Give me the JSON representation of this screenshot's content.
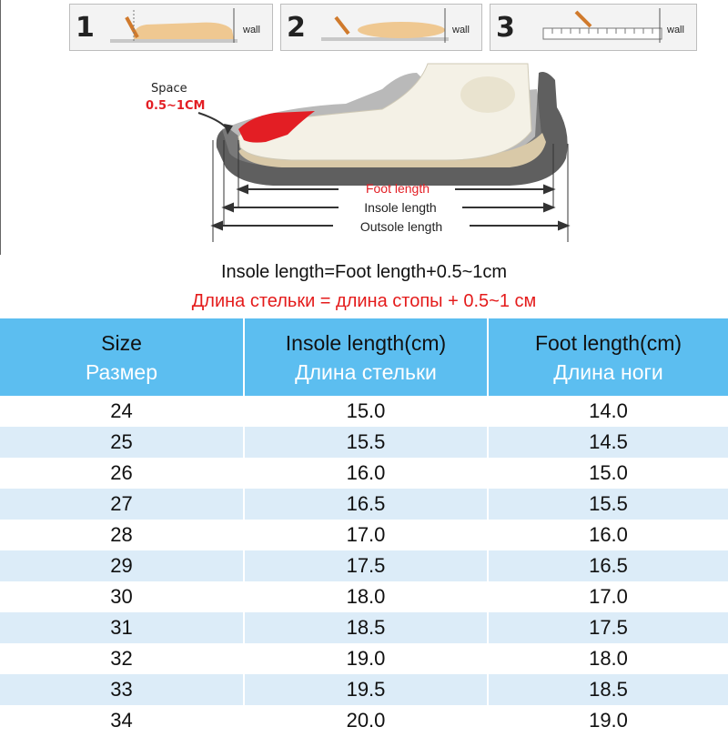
{
  "steps": [
    {
      "number": "1",
      "wall_label": "wall"
    },
    {
      "number": "2",
      "wall_label": "wall"
    },
    {
      "number": "3",
      "wall_label": "wall"
    }
  ],
  "diagram": {
    "space_label": "Space",
    "space_value": "0.5~1CM",
    "foot_length_label": "Foot length",
    "insole_length_label": "Insole length",
    "outsole_length_label": "Outsole length"
  },
  "formula": {
    "en": "Insole length=Foot length+0.5~1cm",
    "ru": "Длина стельки = длина стопы + 0.5~1 см"
  },
  "table": {
    "headers": [
      {
        "en": "Size",
        "ru": "Размер"
      },
      {
        "en": "Insole length(cm)",
        "ru": "Длина стельки"
      },
      {
        "en": "Foot length(cm)",
        "ru": "Длина ноги"
      }
    ],
    "rows": [
      {
        "size": "24",
        "insole": "15.0",
        "foot": "14.0"
      },
      {
        "size": "25",
        "insole": "15.5",
        "foot": "14.5"
      },
      {
        "size": "26",
        "insole": "16.0",
        "foot": "15.0"
      },
      {
        "size": "27",
        "insole": "16.5",
        "foot": "15.5"
      },
      {
        "size": "28",
        "insole": "17.0",
        "foot": "16.0"
      },
      {
        "size": "29",
        "insole": "17.5",
        "foot": "16.5"
      },
      {
        "size": "30",
        "insole": "18.0",
        "foot": "17.0"
      },
      {
        "size": "31",
        "insole": "18.5",
        "foot": "17.5"
      },
      {
        "size": "32",
        "insole": "19.0",
        "foot": "18.0"
      },
      {
        "size": "33",
        "insole": "19.5",
        "foot": "18.5"
      },
      {
        "size": "34",
        "insole": "20.0",
        "foot": "19.0"
      }
    ]
  },
  "colors": {
    "header_blue": "#5cbef0",
    "stripe_blue": "#dcecf8",
    "accent_red": "#e41b1b"
  }
}
